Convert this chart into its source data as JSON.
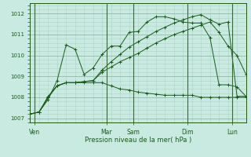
{
  "background_color": "#c8eae0",
  "grid_major_color": "#90b8a8",
  "grid_minor_color": "#b0d4c8",
  "line_color": "#1a5c1a",
  "vline_color": "#3a6a3a",
  "xlabel": "Pression niveau de la mer( hPa )",
  "ylim": [
    1006.8,
    1012.5
  ],
  "yticks": [
    1007,
    1008,
    1009,
    1010,
    1011,
    1012
  ],
  "xlim": [
    0,
    24
  ],
  "day_labels": [
    "Ven",
    "Mar",
    "Sam",
    "Dim",
    "Lun"
  ],
  "day_positions": [
    0.5,
    8.5,
    11.5,
    17.5,
    22.5
  ],
  "vline_positions": [
    0.5,
    8.5,
    11.5,
    17.5,
    22.5
  ],
  "series": [
    [
      1007.2,
      1007.3,
      1007.9,
      1008.8,
      1010.5,
      1010.3,
      1009.1,
      1009.4,
      1010.05,
      1010.45,
      1010.45,
      1011.1,
      1011.15,
      1011.6,
      1011.85,
      1011.85,
      1011.75,
      1011.6,
      1011.55,
      1011.55,
      1010.85,
      1008.6,
      1008.6,
      1008.5,
      1008.05
    ],
    [
      1007.2,
      1007.3,
      1008.0,
      1008.55,
      1008.7,
      1008.7,
      1008.75,
      1008.8,
      1009.2,
      1009.45,
      1009.7,
      1009.9,
      1010.1,
      1010.35,
      1010.6,
      1010.8,
      1011.0,
      1011.15,
      1011.3,
      1011.45,
      1011.6,
      1011.1,
      1010.45,
      1010.0,
      1009.1
    ],
    [
      1007.2,
      1007.3,
      1008.0,
      1008.55,
      1008.7,
      1008.7,
      1008.75,
      1008.8,
      1009.3,
      1009.7,
      1010.05,
      1010.4,
      1010.65,
      1010.9,
      1011.15,
      1011.35,
      1011.55,
      1011.7,
      1011.85,
      1011.95,
      1011.7,
      1011.5,
      1011.6,
      1008.05,
      1008.05
    ],
    [
      1007.2,
      1007.3,
      1008.05,
      1008.55,
      1008.7,
      1008.7,
      1008.7,
      1008.7,
      1008.7,
      1008.55,
      1008.4,
      1008.35,
      1008.25,
      1008.2,
      1008.15,
      1008.1,
      1008.1,
      1008.1,
      1008.1,
      1008.0,
      1008.0,
      1008.0,
      1008.0,
      1008.0,
      1008.0
    ]
  ]
}
